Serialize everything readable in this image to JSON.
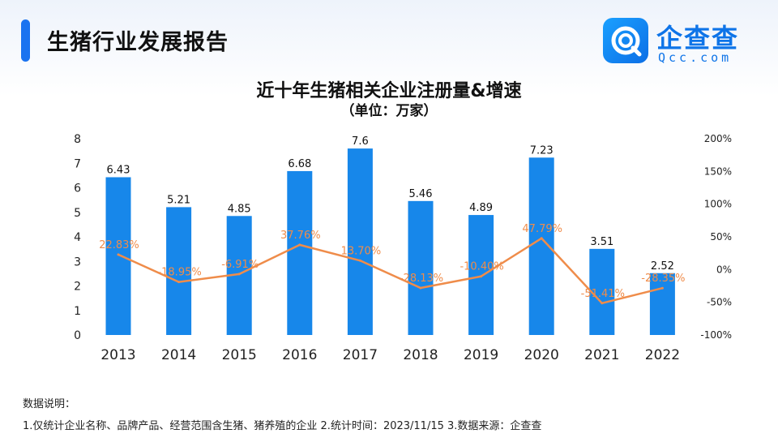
{
  "header": {
    "title": "生猪行业发展报告"
  },
  "logo": {
    "name": "企查查",
    "domain": "Qcc.com",
    "icon": "qcc-logo-icon",
    "color": "#0e74e8"
  },
  "notes": {
    "heading": "数据说明：",
    "body": "1.仅统计企业名称、品牌产品、经营范围含生猪、猪养殖的企业   2.统计时间：2023/11/15   3.数据来源：企查查"
  },
  "chart_data": {
    "type": "bar",
    "title": "近十年生猪相关企业注册量&增速",
    "subtitle": "（单位：万家）",
    "categories": [
      "2013",
      "2014",
      "2015",
      "2016",
      "2017",
      "2018",
      "2019",
      "2020",
      "2021",
      "2022"
    ],
    "series": [
      {
        "type": "bar",
        "values": [
          6.43,
          5.21,
          4.85,
          6.68,
          7.6,
          5.46,
          4.89,
          7.23,
          3.51,
          2.52
        ],
        "labels": [
          "6.43",
          "5.21",
          "4.85",
          "6.68",
          "7.6",
          "5.46",
          "4.89",
          "7.23",
          "3.51",
          "2.52"
        ],
        "color": "#1787ea",
        "axis": "left"
      },
      {
        "type": "line",
        "values": [
          22.83,
          -18.95,
          -6.91,
          37.76,
          13.7,
          -28.13,
          -10.4,
          47.79,
          -51.41,
          -28.35
        ],
        "labels": [
          "22.83%",
          "-18.95%",
          "-6.91%",
          "37.76%",
          "13.70%",
          "-28.13%",
          "-10.40%",
          "47.79%",
          "-51.41%",
          "-28.35%"
        ],
        "color": "#ef8c4a",
        "axis": "right"
      }
    ],
    "left_axis": {
      "ylim": [
        0,
        8
      ],
      "ticks": [
        "0",
        "1",
        "2",
        "3",
        "4",
        "5",
        "6",
        "7",
        "8"
      ]
    },
    "right_axis": {
      "ylim": [
        -100,
        200
      ],
      "ticks": [
        "-100%",
        "-50%",
        "0%",
        "50%",
        "100%",
        "150%",
        "200%"
      ]
    },
    "grid": false,
    "legend": "none"
  }
}
